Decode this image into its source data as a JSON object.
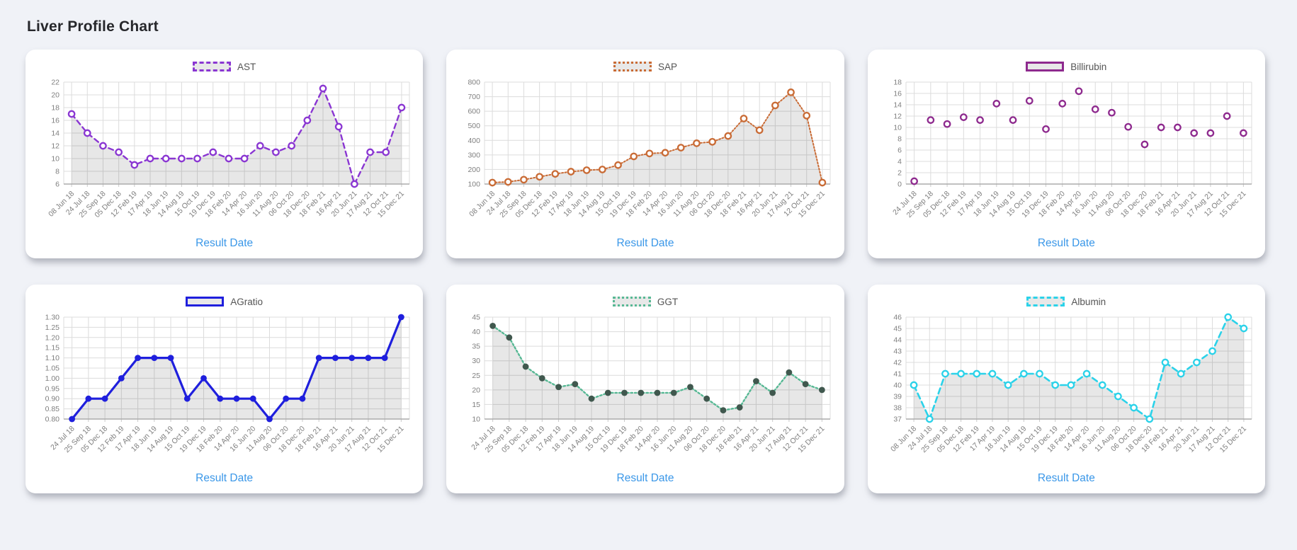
{
  "page": {
    "title": "Liver Profile Chart"
  },
  "theme": {
    "page_bg": "#f0f2f7",
    "card_bg": "#ffffff",
    "title_color": "#26272b",
    "grid": "#dcdcdc",
    "axis": "#ababab",
    "tick_text": "#7f7f7f",
    "area_fill": "rgba(0,0,0,0.095)",
    "legend_fill": "#e8e8e8",
    "legend_text": "#545454",
    "axis_title_color": "#3a97e8"
  },
  "chart_data": [
    {
      "type": "line",
      "title": "AST",
      "xlabel": "Result Date",
      "legend_position": "top",
      "grid": true,
      "categories": [
        "08 Jun 18",
        "24 Jul 18",
        "25 Sep 18",
        "05 Dec 18",
        "12 Feb 19",
        "17 Apr 19",
        "18 Jun 19",
        "14 Aug 19",
        "15 Oct 19",
        "19 Dec 19",
        "18 Feb 20",
        "14 Apr 20",
        "16 Jun 20",
        "11 Aug 20",
        "06 Oct 20",
        "18 Dec 20",
        "18 Feb 21",
        "16 Apr 21",
        "20 Jun 21",
        "17 Aug 21",
        "12 Oct 21",
        "15 Dec 21"
      ],
      "values": [
        17,
        14,
        12,
        11,
        9,
        10,
        10,
        10,
        10,
        11,
        10,
        10,
        12,
        11,
        12,
        16,
        21,
        15,
        6,
        11,
        11,
        18
      ],
      "ylim": [
        6,
        22
      ],
      "y_ticks": [
        6,
        8,
        10,
        12,
        14,
        16,
        18,
        20,
        22
      ],
      "y_tick_decimals": 0,
      "style": {
        "color": "#8a36d2",
        "line": "dashed",
        "dash": "7 5",
        "line_width": 2.4,
        "marker": "open",
        "area_fill": true
      }
    },
    {
      "type": "line",
      "title": "SAP",
      "xlabel": "Result Date",
      "legend_position": "top",
      "grid": true,
      "categories": [
        "08 Jun 18",
        "24 Jul 18",
        "25 Sep 18",
        "05 Dec 18",
        "12 Feb 19",
        "17 Apr 19",
        "18 Jun 19",
        "14 Aug 19",
        "15 Oct 19",
        "19 Dec 19",
        "18 Feb 20",
        "14 Apr 20",
        "16 Jun 20",
        "11 Aug 20",
        "06 Oct 20",
        "18 Dec 20",
        "18 Feb 21",
        "16 Apr 21",
        "20 Jun 21",
        "17 Aug 21",
        "12 Oct 21",
        "15 Dec 21"
      ],
      "values": [
        110,
        115,
        130,
        150,
        170,
        185,
        195,
        200,
        230,
        290,
        310,
        315,
        350,
        380,
        390,
        430,
        550,
        470,
        640,
        730,
        570,
        110
      ],
      "ylim": [
        100,
        800
      ],
      "y_ticks": [
        100,
        200,
        300,
        400,
        500,
        600,
        700,
        800
      ],
      "y_tick_decimals": 0,
      "style": {
        "color": "#c96b35",
        "line": "dotted",
        "dash": "2 2.5",
        "line_width": 2,
        "marker": "open",
        "area_fill": true
      }
    },
    {
      "type": "scatter",
      "title": "Billirubin",
      "xlabel": "Result Date",
      "legend_position": "top",
      "grid": true,
      "categories": [
        "24 Jul 18",
        "25 Sep 18",
        "05 Dec 18",
        "12 Feb 19",
        "17 Apr 19",
        "18 Jun 19",
        "14 Aug 19",
        "15 Oct 19",
        "19 Dec 19",
        "18 Feb 20",
        "14 Apr 20",
        "16 Jun 20",
        "11 Aug 20",
        "06 Oct 20",
        "18 Dec 20",
        "18 Feb 21",
        "16 Apr 21",
        "20 Jun 21",
        "17 Aug 21",
        "12 Oct 21",
        "15 Dec 21"
      ],
      "values": [
        0.5,
        11.3,
        10.6,
        11.8,
        11.3,
        14.2,
        11.3,
        14.7,
        9.7,
        14.2,
        16.4,
        13.2,
        12.6,
        10.1,
        7,
        10,
        10,
        9,
        9,
        12,
        9
      ],
      "ylim": [
        0,
        18
      ],
      "y_ticks": [
        0,
        2,
        4,
        6,
        8,
        10,
        12,
        14,
        16,
        18
      ],
      "y_tick_decimals": 0,
      "style": {
        "color": "#8e2a8e",
        "line": "none",
        "dash": "",
        "line_width": 0,
        "marker": "open",
        "area_fill": false
      }
    },
    {
      "type": "line",
      "title": "AGratio",
      "xlabel": "Result Date",
      "legend_position": "top",
      "grid": true,
      "categories": [
        "24 Jul 18",
        "25 Sep 18",
        "05 Dec 18",
        "12 Feb 19",
        "17 Apr 19",
        "18 Jun 19",
        "14 Aug 19",
        "15 Oct 19",
        "19 Dec 19",
        "18 Feb 20",
        "14 Apr 20",
        "16 Jun 20",
        "11 Aug 20",
        "06 Oct 20",
        "18 Dec 20",
        "18 Feb 21",
        "16 Apr 21",
        "20 Jun 21",
        "17 Aug 21",
        "12 Oct 21",
        "15 Dec 21"
      ],
      "values": [
        0.8,
        0.9,
        0.9,
        1.0,
        1.1,
        1.1,
        1.1,
        0.9,
        1.0,
        0.9,
        0.9,
        0.9,
        0.8,
        0.9,
        0.9,
        1.1,
        1.1,
        1.1,
        1.1,
        1.1,
        1.3
      ],
      "ylim": [
        0.8,
        1.3
      ],
      "y_ticks": [
        0.8,
        0.85,
        0.9,
        0.95,
        1.0,
        1.05,
        1.1,
        1.15,
        1.2,
        1.25,
        1.3
      ],
      "y_tick_decimals": 2,
      "style": {
        "color": "#1f1fdd",
        "line": "solid",
        "dash": "",
        "line_width": 3.2,
        "marker": "solid",
        "area_fill": true
      }
    },
    {
      "type": "line",
      "title": "GGT",
      "xlabel": "Result Date",
      "legend_position": "top",
      "grid": true,
      "categories": [
        "24 Jul 18",
        "25 Sep 18",
        "05 Dec 18",
        "12 Feb 19",
        "17 Apr 19",
        "18 Jun 19",
        "14 Aug 19",
        "15 Oct 19",
        "19 Dec 19",
        "18 Feb 20",
        "14 Apr 20",
        "16 Jun 20",
        "11 Aug 20",
        "06 Oct 20",
        "18 Dec 20",
        "18 Feb 21",
        "16 Apr 21",
        "20 Jun 21",
        "17 Aug 21",
        "12 Oct 21",
        "15 Dec 21"
      ],
      "values": [
        42,
        38,
        28,
        24,
        21,
        22,
        17,
        19,
        19,
        19,
        19,
        19,
        21,
        17,
        13,
        14,
        23,
        19,
        26,
        22,
        20
      ],
      "ylim": [
        10,
        45
      ],
      "y_ticks": [
        10,
        15,
        20,
        25,
        30,
        35,
        40,
        45
      ],
      "y_tick_decimals": 0,
      "style": {
        "color": "#57b894",
        "line": "dotted",
        "dash": "2.5 3",
        "line_width": 2.4,
        "marker": "solid",
        "marker_color": "#40584e",
        "area_fill": true
      }
    },
    {
      "type": "line",
      "title": "Albumin",
      "xlabel": "Result Date",
      "legend_position": "top",
      "grid": true,
      "categories": [
        "08 Jun 18",
        "24 Jul 18",
        "25 Sep 18",
        "05 Dec 18",
        "12 Feb 19",
        "17 Apr 19",
        "18 Jun 19",
        "14 Aug 19",
        "15 Oct 19",
        "19 Dec 19",
        "18 Feb 20",
        "14 Apr 20",
        "16 Jun 20",
        "11 Aug 20",
        "06 Oct 20",
        "18 Dec 20",
        "18 Feb 21",
        "16 Apr 21",
        "20 Jun 21",
        "17 Aug 21",
        "12 Oct 21",
        "15 Dec 21"
      ],
      "values": [
        40,
        37,
        41,
        41,
        41,
        41,
        40,
        41,
        41,
        40,
        40,
        41,
        40,
        39,
        38,
        37,
        42,
        41,
        42,
        43,
        46,
        45
      ],
      "ylim": [
        37,
        46
      ],
      "y_ticks": [
        37,
        38,
        39,
        40,
        41,
        42,
        43,
        44,
        45,
        46
      ],
      "y_tick_decimals": 0,
      "style": {
        "color": "#2bd2e9",
        "line": "dashed",
        "dash": "8 5",
        "line_width": 2.6,
        "marker": "open",
        "area_fill": true
      }
    }
  ]
}
